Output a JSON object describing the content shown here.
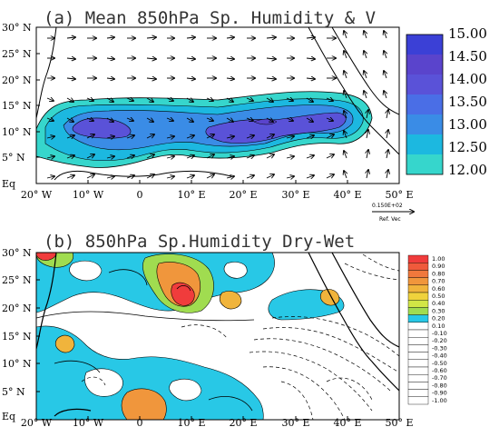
{
  "chart_data": [
    {
      "type": "heatmap",
      "title": "(a) Mean 850hPa Sp. Humidity & V",
      "x_ticks": [
        "20° W",
        "10° W",
        "0",
        "10° E",
        "20° E",
        "30° E",
        "40° E",
        "50° E"
      ],
      "y_ticks": [
        "Eq",
        "5° N",
        "10° N",
        "15° N",
        "20° N",
        "25° N",
        "30° N"
      ],
      "xlim": [
        -20,
        50
      ],
      "ylim": [
        0,
        30
      ],
      "colorbar": {
        "levels": [
          "12.00",
          "12.50",
          "13.00",
          "13.50",
          "14.00",
          "14.50",
          "15.00"
        ],
        "colors": [
          "#36d6cc",
          "#1cb8e0",
          "#3a8ce6",
          "#4a6ee6",
          "#5a52d8",
          "#5a44cc",
          "#3b40d6"
        ]
      },
      "ref_vector": {
        "value": "0.150E+02",
        "label": "Ref. Vec"
      },
      "regions": [
        {
          "name": "humidity-above-12",
          "color": "#36d6cc"
        },
        {
          "name": "humidity-above-12.5",
          "color": "#1cb8e0"
        },
        {
          "name": "humidity-above-13",
          "color": "#3a8ce6"
        },
        {
          "name": "humidity-above-13.5",
          "color": "#5a52d8"
        }
      ]
    },
    {
      "type": "heatmap",
      "title": "(b) 850hPa Sp.Humidity Dry-Wet",
      "x_ticks": [
        "20° W",
        "10° W",
        "0",
        "10° E",
        "20° E",
        "30° E",
        "40° E",
        "50° E"
      ],
      "y_ticks": [
        "Eq",
        "5° N",
        "10° N",
        "15° N",
        "20° N",
        "25° N",
        "30° N"
      ],
      "xlim": [
        -20,
        50
      ],
      "ylim": [
        0,
        30
      ],
      "colorbar": {
        "levels": [
          "1.00",
          "0.90",
          "0.80",
          "0.70",
          "0.60",
          "0.50",
          "0.40",
          "0.30",
          "0.20",
          "0.10",
          "-0.10",
          "-0.20",
          "-0.30",
          "-0.40",
          "-0.50",
          "-0.60",
          "-0.70",
          "-0.80",
          "-0.90",
          "-1.00"
        ],
        "colors": [
          "#f03c3c",
          "#f05a3c",
          "#f0783c",
          "#f0963c",
          "#f0b43c",
          "#f0d23c",
          "#d2e646",
          "#a0dc50",
          "#28c8e6",
          "#ffffff",
          "#ffffff",
          "#ffffff",
          "#ffffff",
          "#ffffff",
          "#ffffff",
          "#ffffff",
          "#ffffff",
          "#ffffff",
          "#ffffff",
          "#ffffff"
        ]
      }
    }
  ]
}
